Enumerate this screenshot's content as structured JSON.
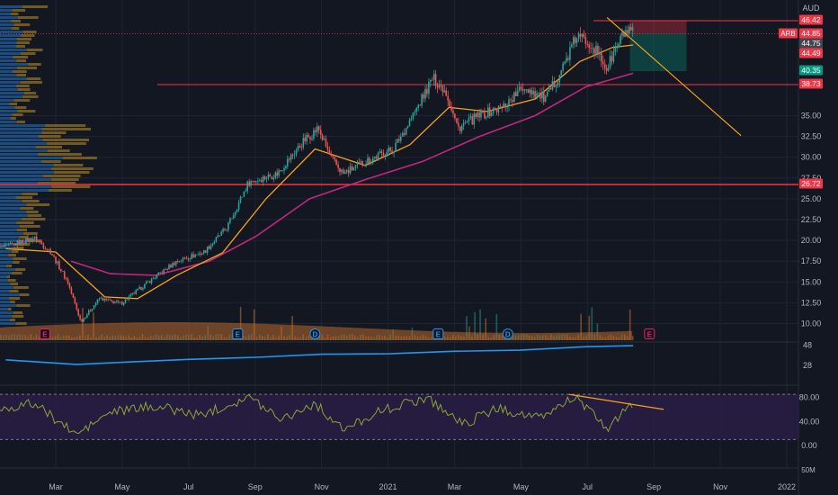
{
  "currency": "AUD",
  "colors": {
    "bg": "#131722",
    "grid": "#1f2433",
    "up": "#26a69a",
    "down": "#ef5350",
    "ema20": "#f7a21b",
    "ema50": "#c2277f",
    "trend": "#f7a21b",
    "level": "#f23645",
    "ratio": "#2196f3",
    "rsi": "#8ba43a",
    "rsi_band": "#2a1d44",
    "volume": "#b86a2c",
    "vp_up": "#1e5fa0",
    "vp_down": "#8a6a26"
  },
  "chart_data": [
    {
      "type": "candlestick",
      "title": "",
      "x_ticks": [
        "Mar",
        "May",
        "Jul",
        "Sep",
        "Nov",
        "2021",
        "Mar",
        "May",
        "Jul",
        "Sep",
        "Nov",
        "2022"
      ],
      "y_ticks": [
        "10.00",
        "12.50",
        "15.00",
        "17.50",
        "20.00",
        "22.50",
        "25.00",
        "27.50",
        "30.00",
        "32.50",
        "35.00"
      ],
      "ylim": [
        8.5,
        48
      ],
      "price_path": [
        {
          "t": "2020-01-15",
          "p": 19.2
        },
        {
          "t": "2020-02-10",
          "p": 20.3
        },
        {
          "t": "2020-02-25",
          "p": 18.7
        },
        {
          "t": "2020-03-12",
          "p": 15.0
        },
        {
          "t": "2020-03-24",
          "p": 10.2
        },
        {
          "t": "2020-04-10",
          "p": 13.0
        },
        {
          "t": "2020-04-30",
          "p": 12.4
        },
        {
          "t": "2020-05-25",
          "p": 15.0
        },
        {
          "t": "2020-06-20",
          "p": 17.5
        },
        {
          "t": "2020-07-15",
          "p": 18.6
        },
        {
          "t": "2020-08-05",
          "p": 21.5
        },
        {
          "t": "2020-08-25",
          "p": 27.0
        },
        {
          "t": "2020-09-20",
          "p": 28.0
        },
        {
          "t": "2020-10-15",
          "p": 32.0
        },
        {
          "t": "2020-10-28",
          "p": 33.5
        },
        {
          "t": "2020-11-08",
          "p": 30.0
        },
        {
          "t": "2020-11-20",
          "p": 28.0
        },
        {
          "t": "2020-12-10",
          "p": 29.5
        },
        {
          "t": "2021-01-05",
          "p": 31.0
        },
        {
          "t": "2021-01-25",
          "p": 35.5
        },
        {
          "t": "2021-02-10",
          "p": 39.5
        },
        {
          "t": "2021-02-22",
          "p": 38.0
        },
        {
          "t": "2021-03-05",
          "p": 33.5
        },
        {
          "t": "2021-03-25",
          "p": 35.0
        },
        {
          "t": "2021-04-15",
          "p": 36.0
        },
        {
          "t": "2021-05-05",
          "p": 38.5
        },
        {
          "t": "2021-05-25",
          "p": 37.0
        },
        {
          "t": "2021-06-10",
          "p": 41.0
        },
        {
          "t": "2021-06-22",
          "p": 44.5
        },
        {
          "t": "2021-07-05",
          "p": 43.8
        },
        {
          "t": "2021-07-20",
          "p": 40.6
        },
        {
          "t": "2021-07-26",
          "p": 42.5
        },
        {
          "t": "2021-08-05",
          "p": 45.0
        },
        {
          "t": "2021-08-13",
          "p": 44.85
        }
      ],
      "ema_fast": [
        {
          "t": "2020-01-15",
          "p": 19.0
        },
        {
          "t": "2020-03-01",
          "p": 18.6
        },
        {
          "t": "2020-04-15",
          "p": 13.2
        },
        {
          "t": "2020-05-15",
          "p": 13.0
        },
        {
          "t": "2020-06-20",
          "p": 15.8
        },
        {
          "t": "2020-08-01",
          "p": 18.5
        },
        {
          "t": "2020-09-10",
          "p": 25.0
        },
        {
          "t": "2020-10-25",
          "p": 31.0
        },
        {
          "t": "2020-12-10",
          "p": 29.0
        },
        {
          "t": "2021-01-20",
          "p": 31.5
        },
        {
          "t": "2021-02-25",
          "p": 36.0
        },
        {
          "t": "2021-04-01",
          "p": 35.5
        },
        {
          "t": "2021-05-15",
          "p": 37.0
        },
        {
          "t": "2021-06-25",
          "p": 41.5
        },
        {
          "t": "2021-07-25",
          "p": 43.2
        },
        {
          "t": "2021-08-13",
          "p": 43.5
        }
      ],
      "ema_slow": [
        {
          "t": "2020-03-15",
          "p": 17.5
        },
        {
          "t": "2020-04-20",
          "p": 16.0
        },
        {
          "t": "2020-06-01",
          "p": 15.8
        },
        {
          "t": "2020-07-20",
          "p": 17.5
        },
        {
          "t": "2020-09-01",
          "p": 20.5
        },
        {
          "t": "2020-10-20",
          "p": 25.0
        },
        {
          "t": "2020-12-10",
          "p": 27.3
        },
        {
          "t": "2021-02-01",
          "p": 29.5
        },
        {
          "t": "2021-03-25",
          "p": 32.5
        },
        {
          "t": "2021-05-15",
          "p": 35.0
        },
        {
          "t": "2021-07-01",
          "p": 38.5
        },
        {
          "t": "2021-08-13",
          "p": 40.1
        }
      ],
      "horizontal_levels": [
        {
          "price": 26.72,
          "label": "26.72"
        },
        {
          "price": 38.73,
          "label": "38.73"
        },
        {
          "price": 46.42,
          "label": "46.42"
        }
      ],
      "trendline": [
        {
          "t": "2021-07-20",
          "p": 46.8
        },
        {
          "t": "2021-11-20",
          "p": 32.6
        }
      ],
      "position": {
        "start": "2021-08-10",
        "end": "2021-10-01",
        "entry": 44.85,
        "stop": 46.42,
        "target": 40.35
      },
      "price_labels": [
        {
          "label": "46.42",
          "kind": "red"
        },
        {
          "label": "44.85",
          "kind": "red",
          "tag": "ARB"
        },
        {
          "label": "44.75",
          "kind": "gray"
        },
        {
          "label": "44.49",
          "kind": "red"
        },
        {
          "label": "40.35",
          "kind": "teal"
        },
        {
          "label": "38.73",
          "kind": "red"
        },
        {
          "label": "26.72",
          "kind": "red"
        }
      ],
      "earnings_markers": [
        {
          "t": "2020-02-20",
          "label": "E",
          "kind": "pink"
        },
        {
          "t": "2020-08-15",
          "label": "E",
          "kind": "blue"
        },
        {
          "t": "2020-10-25",
          "label": "D",
          "kind": "blue"
        },
        {
          "t": "2021-02-15",
          "label": "E",
          "kind": "blue"
        },
        {
          "t": "2021-04-20",
          "label": "D",
          "kind": "blue"
        },
        {
          "t": "2021-08-28",
          "label": "E",
          "kind": "pink"
        }
      ]
    },
    {
      "type": "line",
      "title": "",
      "y_ticks": [
        "28",
        "48"
      ],
      "ylim": [
        20,
        50
      ],
      "series": [
        {
          "values": [
            {
              "t": "2020-01-15",
              "p": 33.5
            },
            {
              "t": "2020-03-20",
              "p": 29.0
            },
            {
              "t": "2020-05-01",
              "p": 31.0
            },
            {
              "t": "2020-07-01",
              "p": 34.0
            },
            {
              "t": "2020-09-01",
              "p": 36.0
            },
            {
              "t": "2020-11-01",
              "p": 39.0
            },
            {
              "t": "2021-01-01",
              "p": 39.5
            },
            {
              "t": "2021-03-01",
              "p": 42.0
            },
            {
              "t": "2021-05-01",
              "p": 43.0
            },
            {
              "t": "2021-07-01",
              "p": 46.5
            },
            {
              "t": "2021-08-13",
              "p": 47.5
            }
          ]
        }
      ]
    },
    {
      "type": "line",
      "title": "",
      "y_ticks": [
        "80.00",
        "40.00",
        "0.00"
      ],
      "ylim": [
        -5,
        100
      ],
      "bands": [
        70,
        30
      ],
      "series": [
        {
          "values": [
            {
              "t": "2020-01-15",
              "p": 62
            },
            {
              "t": "2020-02-10",
              "p": 70
            },
            {
              "t": "2020-03-20",
              "p": 18
            },
            {
              "t": "2020-04-20",
              "p": 55
            },
            {
              "t": "2020-06-01",
              "p": 66
            },
            {
              "t": "2020-07-10",
              "p": 50
            },
            {
              "t": "2020-08-25",
              "p": 80
            },
            {
              "t": "2020-09-25",
              "p": 45
            },
            {
              "t": "2020-10-25",
              "p": 70
            },
            {
              "t": "2020-11-20",
              "p": 25
            },
            {
              "t": "2020-12-20",
              "p": 55
            },
            {
              "t": "2021-02-05",
              "p": 80
            },
            {
              "t": "2021-03-10",
              "p": 35
            },
            {
              "t": "2021-04-10",
              "p": 62
            },
            {
              "t": "2021-05-20",
              "p": 45
            },
            {
              "t": "2021-06-20",
              "p": 82
            },
            {
              "t": "2021-07-20",
              "p": 28
            },
            {
              "t": "2021-08-13",
              "p": 70
            }
          ]
        }
      ],
      "divergence_line": [
        {
          "t": "2021-06-15",
          "p": 85
        },
        {
          "t": "2021-09-10",
          "p": 60
        }
      ]
    },
    {
      "type": "bar",
      "title": "",
      "y_ticks": [
        "50M"
      ]
    }
  ]
}
